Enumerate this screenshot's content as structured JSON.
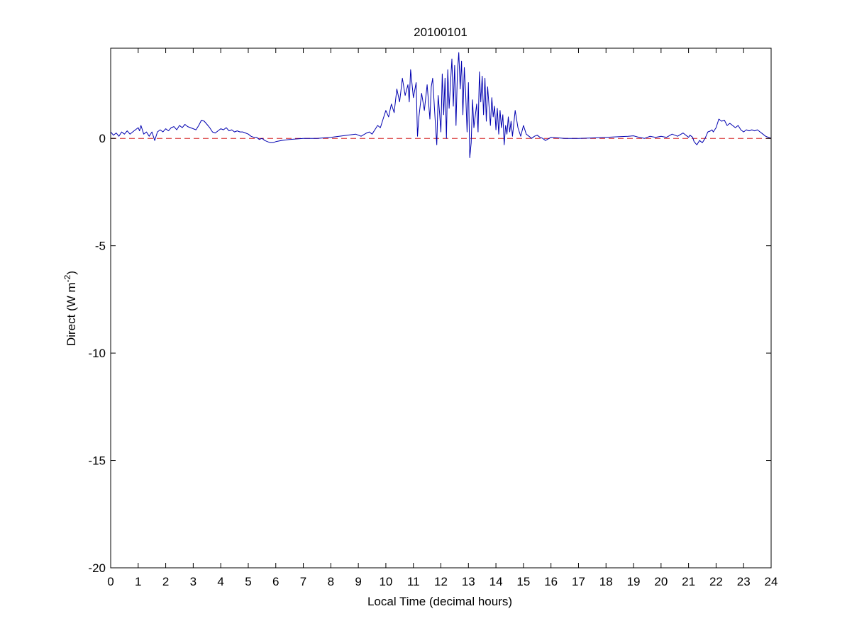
{
  "chart_data": {
    "type": "line",
    "title": "20100101",
    "xlabel": "Local Time (decimal hours)",
    "ylabel_main": "Direct (W m",
    "ylabel_sup": "-2",
    "ylabel_end": ")",
    "xlim": [
      0,
      24
    ],
    "ylim": [
      -20,
      4.2
    ],
    "x_ticks": [
      0,
      1,
      2,
      3,
      4,
      5,
      6,
      7,
      8,
      9,
      10,
      11,
      12,
      13,
      14,
      15,
      16,
      17,
      18,
      19,
      20,
      21,
      22,
      23,
      24
    ],
    "y_ticks": [
      -20,
      -15,
      -10,
      -5,
      0
    ],
    "grid": false,
    "legend": "none",
    "colors": {
      "series": "#0000b0",
      "zero_line": "#d62020"
    },
    "series": [
      {
        "style": "solid",
        "x": [
          0,
          0.1,
          0.2,
          0.3,
          0.4,
          0.5,
          0.6,
          0.7,
          0.8,
          0.9,
          1.0,
          1.05,
          1.1,
          1.2,
          1.3,
          1.4,
          1.5,
          1.6,
          1.7,
          1.8,
          1.9,
          2.0,
          2.1,
          2.2,
          2.3,
          2.4,
          2.5,
          2.6,
          2.7,
          2.8,
          2.9,
          3.0,
          3.1,
          3.2,
          3.3,
          3.4,
          3.5,
          3.6,
          3.7,
          3.8,
          3.9,
          4.0,
          4.1,
          4.2,
          4.3,
          4.4,
          4.5,
          4.6,
          4.7,
          4.8,
          4.9,
          5.0,
          5.1,
          5.2,
          5.3,
          5.4,
          5.5,
          5.6,
          5.7,
          5.8,
          5.9,
          6.0,
          6.2,
          6.5,
          7.0,
          7.5,
          8.0,
          8.3,
          8.6,
          8.9,
          9.1,
          9.3,
          9.4,
          9.5,
          9.6,
          9.7,
          9.8,
          9.9,
          10.0,
          10.1,
          10.2,
          10.3,
          10.4,
          10.5,
          10.6,
          10.7,
          10.8,
          10.85,
          10.9,
          11.0,
          11.1,
          11.15,
          11.2,
          11.3,
          11.4,
          11.5,
          11.6,
          11.65,
          11.7,
          11.8,
          11.85,
          11.9,
          11.95,
          12.0,
          12.05,
          12.1,
          12.15,
          12.2,
          12.25,
          12.3,
          12.35,
          12.4,
          12.45,
          12.5,
          12.55,
          12.6,
          12.65,
          12.7,
          12.75,
          12.8,
          12.85,
          12.9,
          12.95,
          13.0,
          13.05,
          13.1,
          13.15,
          13.2,
          13.3,
          13.35,
          13.4,
          13.45,
          13.5,
          13.55,
          13.6,
          13.65,
          13.7,
          13.8,
          13.85,
          13.9,
          13.95,
          14.0,
          14.05,
          14.1,
          14.15,
          14.2,
          14.25,
          14.3,
          14.35,
          14.4,
          14.45,
          14.5,
          14.55,
          14.6,
          14.7,
          14.8,
          14.9,
          15.0,
          15.1,
          15.2,
          15.3,
          15.4,
          15.5,
          15.6,
          15.7,
          15.8,
          16.0,
          16.5,
          17.0,
          17.5,
          18.0,
          18.5,
          18.8,
          19.0,
          19.2,
          19.4,
          19.6,
          19.8,
          20.0,
          20.2,
          20.4,
          20.6,
          20.8,
          21.0,
          21.05,
          21.1,
          21.15,
          21.2,
          21.3,
          21.4,
          21.5,
          21.6,
          21.7,
          21.8,
          21.85,
          21.9,
          22.0,
          22.1,
          22.2,
          22.3,
          22.4,
          22.5,
          22.6,
          22.7,
          22.8,
          22.9,
          23.0,
          23.1,
          23.2,
          23.3,
          23.4,
          23.5,
          23.6,
          23.7,
          23.8,
          24.0
        ],
        "y": [
          0.3,
          0.15,
          0.25,
          0.1,
          0.3,
          0.2,
          0.35,
          0.2,
          0.3,
          0.4,
          0.5,
          0.35,
          0.6,
          0.2,
          0.3,
          0.1,
          0.3,
          -0.1,
          0.3,
          0.4,
          0.3,
          0.45,
          0.35,
          0.5,
          0.55,
          0.4,
          0.6,
          0.5,
          0.65,
          0.55,
          0.5,
          0.45,
          0.4,
          0.6,
          0.85,
          0.8,
          0.65,
          0.5,
          0.3,
          0.25,
          0.35,
          0.45,
          0.4,
          0.5,
          0.35,
          0.4,
          0.3,
          0.35,
          0.3,
          0.3,
          0.25,
          0.2,
          0.1,
          0.05,
          0.05,
          -0.05,
          0.0,
          -0.1,
          -0.15,
          -0.2,
          -0.2,
          -0.15,
          -0.1,
          -0.05,
          0.0,
          0.0,
          0.05,
          0.1,
          0.15,
          0.2,
          0.1,
          0.25,
          0.3,
          0.2,
          0.4,
          0.6,
          0.5,
          0.9,
          1.3,
          1.0,
          1.6,
          1.2,
          2.3,
          1.7,
          2.8,
          2.0,
          2.5,
          1.7,
          3.2,
          1.9,
          2.6,
          0.1,
          1.0,
          2.1,
          1.3,
          2.5,
          0.9,
          2.4,
          2.8,
          0.7,
          -0.3,
          2.0,
          1.2,
          0.3,
          3.0,
          1.1,
          2.8,
          0.0,
          3.2,
          1.4,
          2.6,
          3.7,
          1.5,
          3.4,
          0.6,
          3.1,
          4.0,
          2.3,
          3.6,
          1.1,
          3.3,
          2.1,
          0.3,
          2.6,
          -0.9,
          -0.2,
          1.8,
          0.5,
          1.6,
          0.3,
          3.1,
          1.7,
          2.9,
          1.1,
          2.8,
          0.8,
          2.4,
          0.6,
          1.9,
          1.0,
          1.5,
          0.4,
          1.4,
          0.2,
          1.3,
          0.5,
          1.1,
          -0.3,
          0.6,
          0.2,
          1.0,
          0.3,
          0.8,
          0.1,
          1.3,
          0.5,
          0.1,
          0.6,
          0.2,
          0.1,
          0.0,
          0.1,
          0.15,
          0.05,
          0.0,
          -0.1,
          0.05,
          0.0,
          0.0,
          0.02,
          0.05,
          0.08,
          0.1,
          0.12,
          0.05,
          0.0,
          0.1,
          0.05,
          0.1,
          0.05,
          0.2,
          0.1,
          0.25,
          0.05,
          0.15,
          0.1,
          0.05,
          -0.15,
          -0.3,
          -0.1,
          -0.2,
          0.0,
          0.3,
          0.35,
          0.4,
          0.3,
          0.5,
          0.9,
          0.8,
          0.85,
          0.6,
          0.7,
          0.6,
          0.5,
          0.6,
          0.4,
          0.3,
          0.4,
          0.35,
          0.4,
          0.35,
          0.4,
          0.3,
          0.2,
          0.1,
          0.0
        ]
      },
      {
        "style": "dashed",
        "x": [
          0,
          24
        ],
        "y": [
          0,
          0
        ]
      }
    ]
  }
}
